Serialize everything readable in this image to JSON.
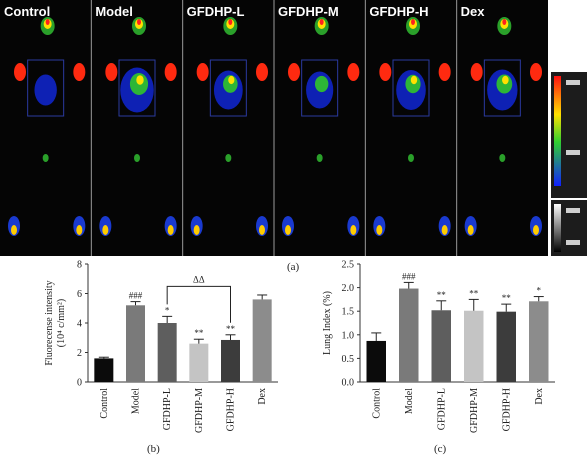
{
  "imaging": {
    "lanes": [
      "Control",
      "Model",
      "GFDHP-L",
      "GFDHP-M",
      "GFDHP-H",
      "Dex"
    ],
    "caption": "(a)"
  },
  "chart_data": [
    {
      "type": "bar",
      "caption": "(b)",
      "categories": [
        "Control",
        "Model",
        "GFDHP-L",
        "GFDHP-M",
        "GFDHP-H",
        "Dex"
      ],
      "values": [
        1.6,
        5.2,
        4.0,
        2.6,
        2.85,
        5.6
      ],
      "errors": [
        0.08,
        0.25,
        0.45,
        0.3,
        0.35,
        0.3
      ],
      "colors": [
        "#0b0b0b",
        "#7a7a7a",
        "#5e5e5e",
        "#c4c4c4",
        "#3c3c3c",
        "#8c8c8c"
      ],
      "significance": [
        "",
        "###",
        "*",
        "**",
        "**",
        ""
      ],
      "bracket": {
        "from": "GFDHP-L",
        "to": "GFDHP-H",
        "label": "ΔΔ"
      },
      "ylabel_line1": "Fluorecense intensity",
      "ylabel_line2": "(10⁴ c/mm²)",
      "ylim": [
        0,
        8
      ],
      "yticks": [
        "0",
        "2",
        "4",
        "6",
        "8"
      ],
      "xlabel": ""
    },
    {
      "type": "bar",
      "caption": "(c)",
      "categories": [
        "Control",
        "Model",
        "GFDHP-L",
        "GFDHP-M",
        "GFDHP-H",
        "Dex"
      ],
      "values": [
        0.87,
        1.98,
        1.52,
        1.51,
        1.49,
        1.71
      ],
      "errors": [
        0.17,
        0.13,
        0.2,
        0.24,
        0.16,
        0.1
      ],
      "colors": [
        "#0b0b0b",
        "#7a7a7a",
        "#5e5e5e",
        "#c4c4c4",
        "#3c3c3c",
        "#8c8c8c"
      ],
      "significance": [
        "",
        "###",
        "**",
        "**",
        "**",
        "*"
      ],
      "ylabel": "Lung Index (%)",
      "ylim": [
        0,
        2.5
      ],
      "yticks": [
        "0.0",
        "0.5",
        "1.0",
        "1.5",
        "2.0",
        "2.5"
      ],
      "xlabel": ""
    }
  ]
}
